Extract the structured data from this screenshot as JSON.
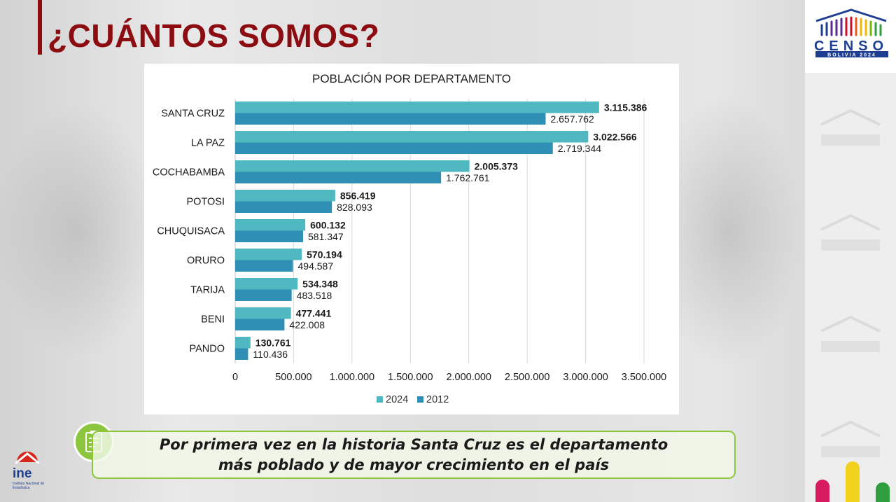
{
  "header": {
    "title": "¿CUÁNTOS SOMOS?"
  },
  "logo": {
    "name": "CENSO",
    "subtitle": "BOLIVIA 2024"
  },
  "ine": {
    "name": "ine",
    "subtitle": "Instituto Nacional de Estadística"
  },
  "chart_data": {
    "type": "bar",
    "orientation": "horizontal",
    "title": "POBLACIÓN POR DEPARTAMENTO",
    "xlabel": "",
    "ylabel": "",
    "categories": [
      "SANTA CRUZ",
      "LA PAZ",
      "COCHABAMBA",
      "POTOSI",
      "CHUQUISACA",
      "ORURO",
      "TARIJA",
      "BENI",
      "PANDO"
    ],
    "series": [
      {
        "name": "2024",
        "color": "#4fb8c0",
        "values": [
          3115386,
          3022566,
          2005373,
          856419,
          600132,
          570194,
          534348,
          477441,
          130761
        ],
        "labels": [
          "3.115.386",
          "3.022.566",
          "2.005.373",
          "856.419",
          "600.132",
          "570.194",
          "534.348",
          "477.441",
          "130.761"
        ]
      },
      {
        "name": "2012",
        "color": "#2f8fb5",
        "values": [
          2657762,
          2719344,
          1762761,
          828093,
          581347,
          494587,
          483518,
          422008,
          110436
        ],
        "labels": [
          "2.657.762",
          "2.719.344",
          "1.762.761",
          "828.093",
          "581.347",
          "494.587",
          "483.518",
          "422.008",
          "110.436"
        ]
      }
    ],
    "xlim": [
      0,
      3500000
    ],
    "xticks": [
      0,
      500000,
      1000000,
      1500000,
      2000000,
      2500000,
      3000000,
      3500000
    ],
    "xtick_labels": [
      "0",
      "500.000",
      "1.000.000",
      "1.500.000",
      "2.000.000",
      "2.500.000",
      "3.000.000",
      "3.500.000"
    ],
    "grid": "vertical",
    "legend": "bottom"
  },
  "callout": {
    "line1": "Por primera vez en la historia Santa Cruz es el departamento",
    "line2": "más poblado y de mayor crecimiento en el país"
  },
  "colors": {
    "accent": "#8b0d12",
    "callout_border": "#8cc63f"
  }
}
